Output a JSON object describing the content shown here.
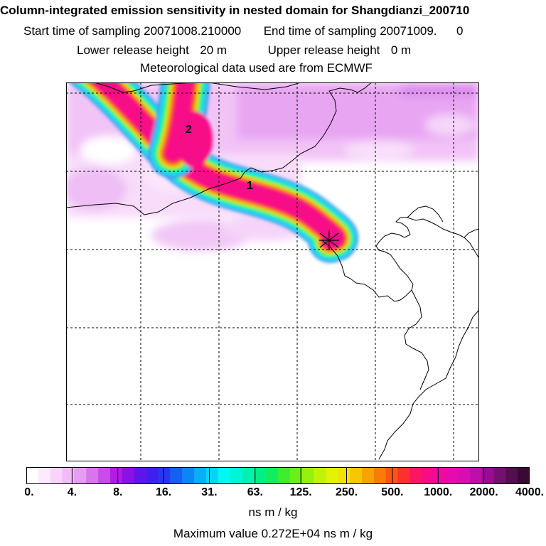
{
  "title": "Column-integrated emission sensitivity in nested domain for Shangdianzi_200710",
  "sampling": {
    "start_label": "Start time of sampling",
    "start_value": "20071008.210000",
    "end_label": "End time of sampling",
    "end_value": "20071009.",
    "end_extra": "0"
  },
  "release": {
    "lower_label": "Lower release height",
    "lower_value": "20 m",
    "upper_label": "Upper release height",
    "upper_value": "0 m"
  },
  "met_line": "Meteorological data used are from ECMWF",
  "map": {
    "labels": [
      "1",
      "2"
    ],
    "grid_color": "#000000",
    "coast_color": "#000000"
  },
  "colorbar": {
    "tick_labels": [
      "0.",
      "4.",
      "8.",
      "16.",
      "31.",
      "63.",
      "125.",
      "250.",
      "500.",
      "1000.",
      "2000.",
      "4000."
    ],
    "colors": [
      "#ffffff",
      "#fdebfd",
      "#f8d4fb",
      "#f1baf8",
      "#e69cf3",
      "#d875ee",
      "#c84ceb",
      "#b41ae6",
      "#8a12e6",
      "#5f14ea",
      "#3f1ff0",
      "#2438f2",
      "#1560f2",
      "#0c86f4",
      "#08aef6",
      "#05d4f8",
      "#00f7f4",
      "#00f4d8",
      "#00f0b0",
      "#00ee86",
      "#14ec5a",
      "#40ec30",
      "#6cee16",
      "#98f00e",
      "#c2f20a",
      "#e4f208",
      "#f2e206",
      "#f6c804",
      "#f8a204",
      "#fa7c06",
      "#fc5416",
      "#fc3030",
      "#fc1466",
      "#f80a88",
      "#f00aa0",
      "#e40cae",
      "#d80eb4",
      "#c00eaa",
      "#9a0c94",
      "#741070",
      "#521050",
      "#3a0a34"
    ],
    "units": "ns m / kg"
  },
  "max_value_text": "Maximum value  0.272E+04 ns m / kg"
}
